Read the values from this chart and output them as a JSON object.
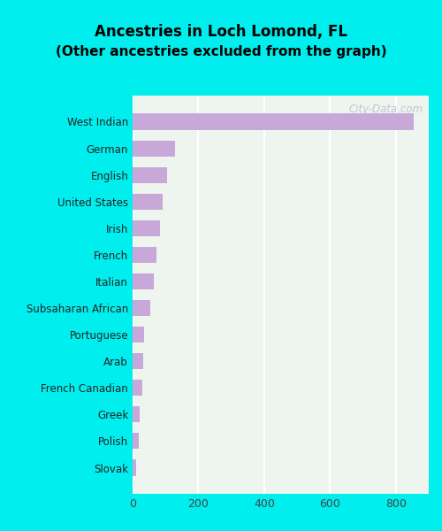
{
  "title_line1": "Ancestries in Loch Lomond, FL",
  "title_line2": "(Other ancestries excluded from the graph)",
  "categories": [
    "Slovak",
    "Polish",
    "Greek",
    "French Canadian",
    "Arab",
    "Portuguese",
    "Subsaharan African",
    "Italian",
    "French",
    "Irish",
    "United States",
    "English",
    "German",
    "West Indian"
  ],
  "values": [
    10,
    18,
    22,
    30,
    32,
    35,
    55,
    65,
    72,
    82,
    90,
    105,
    130,
    855
  ],
  "bar_color": "#c8a8d8",
  "background_color": "#eef5ee",
  "outer_background": "#00eeee",
  "xlim": [
    0,
    900
  ],
  "xticks": [
    0,
    200,
    400,
    600,
    800
  ],
  "watermark": "City-Data.com"
}
